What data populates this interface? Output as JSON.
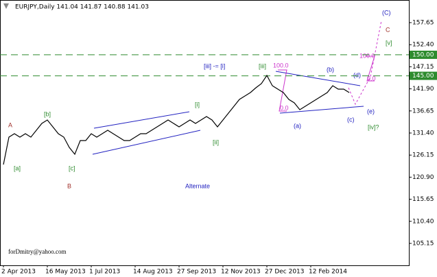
{
  "chart_data": {
    "type": "line",
    "title": "EURJPY,Daily  141.04 141.87 140.88 141.03",
    "color": "#000000",
    "categories": [
      "2 Apr 2013",
      null,
      null,
      null,
      null,
      null,
      null,
      null,
      "16 May 2013",
      null,
      null,
      null,
      null,
      null,
      null,
      null,
      "1 Jul 2013",
      null,
      null,
      null,
      null,
      null,
      null,
      null,
      "14 Aug 2013",
      null,
      null,
      null,
      null,
      null,
      null,
      null,
      "27 Sep 2013",
      null,
      null,
      null,
      null,
      null,
      null,
      null,
      "12 Nov 2013",
      null,
      null,
      null,
      null,
      null,
      null,
      null,
      "27 Dec 2013",
      null,
      null,
      null,
      null,
      null,
      null,
      null,
      "12 Feb 2014",
      null,
      null,
      null,
      null,
      null,
      null,
      null
    ],
    "values": [
      123.9,
      130.42,
      131.24,
      130.42,
      131.24,
      130.42,
      132.05,
      133.68,
      134.5,
      132.87,
      131.24,
      130.42,
      127.97,
      126.34,
      129.6,
      129.6,
      131.24,
      130.42,
      131.24,
      132.05,
      131.24,
      130.42,
      129.6,
      129.6,
      130.42,
      131.24,
      131.24,
      132.05,
      132.87,
      133.68,
      134.5,
      133.68,
      132.87,
      133.68,
      134.5,
      133.68,
      134.5,
      135.31,
      134.5,
      132.87,
      134.5,
      136.13,
      137.76,
      139.39,
      140.2,
      141.02,
      142.16,
      143.14,
      145.09,
      142.65,
      141.83,
      141.02,
      139.39,
      138.57,
      136.94,
      137.76,
      138.57,
      139.39,
      140.2,
      141.02,
      142.65,
      141.83,
      141.83,
      141.02
    ],
    "ylim": [
      99.93,
      163.03
    ],
    "yticks": [
      157.65,
      {
        "value": 152.4,
        "label": "152.40"
      },
      147.15,
      {
        "value": 141.9,
        "label": "141.90"
      },
      136.65,
      {
        "value": 131.4,
        "label": "131.40"
      },
      126.15,
      {
        "value": 120.9,
        "label": "120.90"
      },
      115.65,
      {
        "value": 110.4,
        "label": "110.40"
      },
      105.15
    ],
    "levels": [
      {
        "value": 150,
        "label": "150.00",
        "color": "#2e8b2e"
      },
      {
        "value": 145,
        "label": "145.00",
        "color": "#2e8b2e"
      }
    ],
    "annotations": [
      {
        "text": "A",
        "color": "#a0302a"
      },
      {
        "text": "[a]",
        "color": "#2e8b2e"
      },
      {
        "text": "[b]",
        "color": "#2e8b2e"
      },
      {
        "text": "[c]",
        "color": "#2e8b2e"
      },
      {
        "text": "B",
        "color": "#a0302a"
      },
      {
        "text": "[i]",
        "color": "#2e8b2e"
      },
      {
        "text": "[ii]",
        "color": "#2e8b2e"
      },
      {
        "text": "[iii]",
        "color": "#2e8b2e"
      },
      {
        "text": "[iii] -= [i]",
        "color": "#2020c0"
      },
      {
        "text": "(a)",
        "color": "#2020c0"
      },
      {
        "text": "(b)",
        "color": "#2020c0"
      },
      {
        "text": "(c)",
        "color": "#2020c0"
      },
      {
        "text": "(d)",
        "color": "#2020c0"
      },
      {
        "text": "(e)",
        "color": "#2020c0"
      },
      {
        "text": "[iv]?",
        "color": "#2e8b2e"
      },
      {
        "text": "(C)",
        "color": "#2020c0"
      },
      {
        "text": "C",
        "color": "#a0302a"
      },
      {
        "text": "[v]",
        "color": "#2e8b2e"
      },
      {
        "text": "Alternate",
        "color": "#2020c0"
      },
      {
        "text": "forDmitry@yahoo.com",
        "color": "#000000"
      },
      {
        "text": "100.0",
        "color": "#cc33cc"
      },
      {
        "text": "0.0",
        "color": "#cc33cc"
      },
      {
        "text": "100.0",
        "color": "#cc33cc"
      },
      {
        "text": "0.0",
        "color": "#cc33cc"
      }
    ]
  }
}
